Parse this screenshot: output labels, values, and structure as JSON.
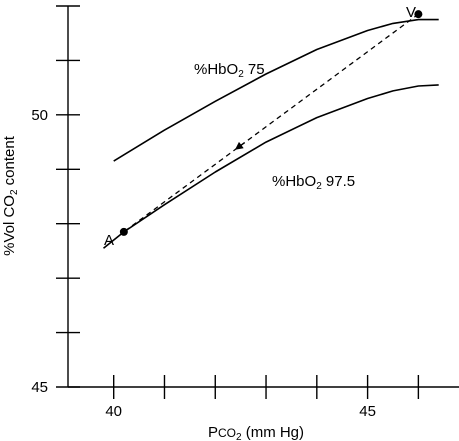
{
  "chart_data": {
    "type": "line",
    "xlabel": {
      "main": "P",
      "small": "CO",
      "sub": "2",
      "rest": " (mm Hg)"
    },
    "ylabel": {
      "pre": "%Vol CO",
      "sub": "2",
      "post": " content"
    },
    "xlim": [
      39.1,
      46.8
    ],
    "ylim": [
      45,
      52
    ],
    "x_ticks": [
      40,
      45
    ],
    "x_minor_ticks": [
      40,
      41,
      42,
      43,
      44,
      45,
      46
    ],
    "y_ticks": [
      45,
      50
    ],
    "y_minor_ticks": [
      45,
      46,
      47,
      48,
      49,
      50,
      51,
      52
    ],
    "series": [
      {
        "name": "%HbO2 75",
        "label": {
          "pre": "%HbO",
          "sub": "2",
          "post": " 75"
        },
        "x": [
          40.0,
          41.0,
          42.0,
          43.0,
          44.0,
          45.0,
          45.5,
          46.0,
          46.4
        ],
        "y": [
          49.15,
          49.72,
          50.25,
          50.75,
          51.2,
          51.55,
          51.68,
          51.75,
          51.75
        ]
      },
      {
        "name": "%HbO2 97.5",
        "label": {
          "pre": "%HbO",
          "sub": "2",
          "post": " 97.5"
        },
        "x": [
          39.8,
          40.2,
          41.0,
          42.0,
          43.0,
          44.0,
          45.0,
          45.5,
          46.0,
          46.4
        ],
        "y": [
          47.55,
          47.85,
          48.35,
          48.95,
          49.5,
          49.95,
          50.3,
          50.44,
          50.53,
          50.55
        ]
      }
    ],
    "points": [
      {
        "label": "A",
        "x": 40.2,
        "y": 47.85
      },
      {
        "label": "V",
        "x": 46.0,
        "y": 51.85
      }
    ],
    "arrow": {
      "from": "V",
      "to": "A",
      "style": "dashed"
    },
    "grid": false
  }
}
